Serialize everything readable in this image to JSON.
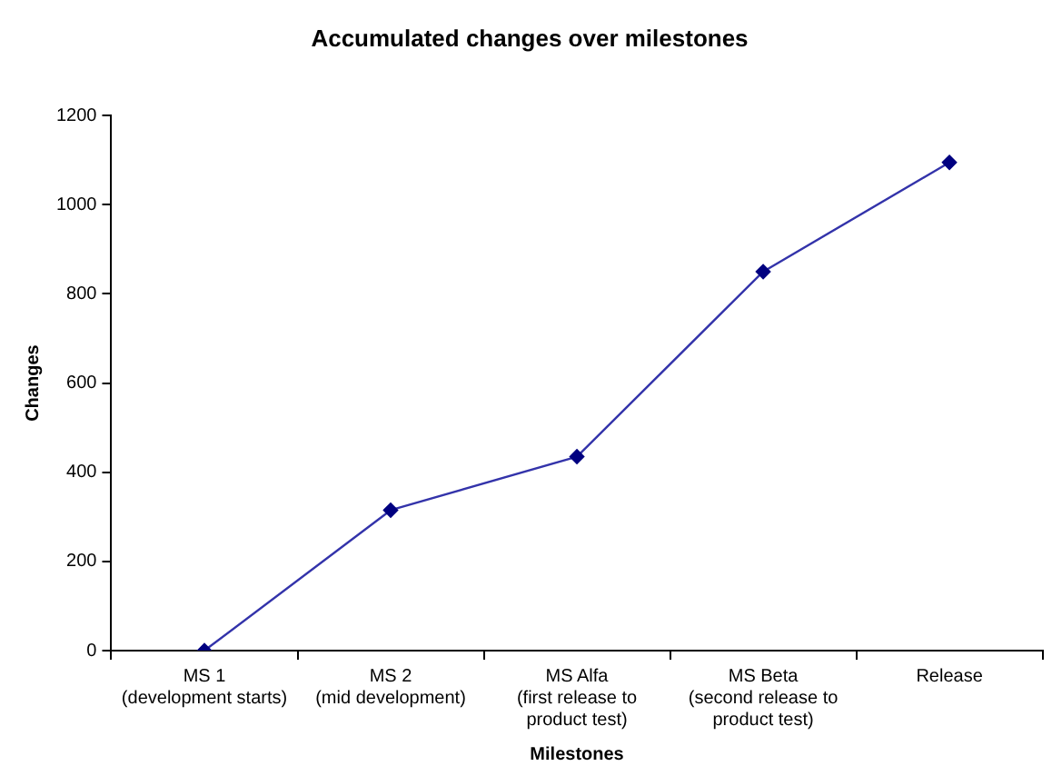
{
  "chart_data": {
    "type": "line",
    "title": "Accumulated changes over milestones",
    "xlabel": "Milestones",
    "ylabel": "Changes",
    "categories": [
      "MS 1\n(development starts)",
      "MS 2\n(mid development)",
      "MS Alfa\n(first release to\nproduct test)",
      "MS Beta\n(second release to\nproduct test)",
      "Release"
    ],
    "series": [
      {
        "color": "#3333aa",
        "values": [
          0,
          315,
          435,
          850,
          1095
        ]
      }
    ],
    "ylim": [
      0,
      1200
    ],
    "yticks": [
      0,
      200,
      400,
      600,
      800,
      1000,
      1200
    ],
    "grid": false,
    "legend": false,
    "marker": "diamond",
    "line_style": "solid"
  }
}
